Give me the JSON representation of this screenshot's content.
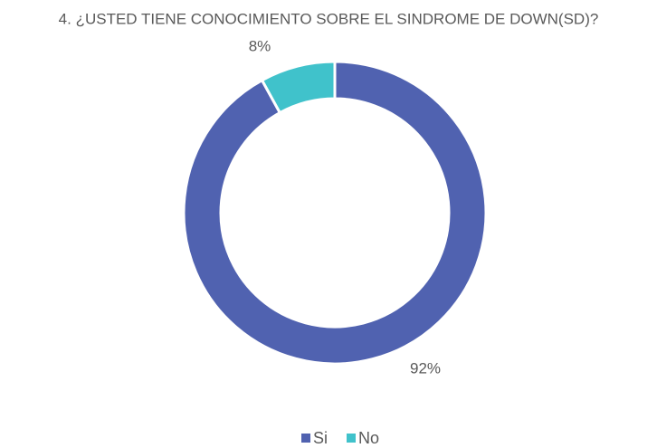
{
  "chart_data": {
    "type": "pie",
    "title": "4. ¿USTED TIENE CONOCIMIENTO SOBRE EL SINDROME DE DOWN(SD)?",
    "categories": [
      "Si",
      "No"
    ],
    "values": [
      92,
      8
    ],
    "value_labels": [
      "92%",
      "8%"
    ],
    "colors": [
      "#5062b0",
      "#40c2cb"
    ],
    "legend": "bottom"
  }
}
